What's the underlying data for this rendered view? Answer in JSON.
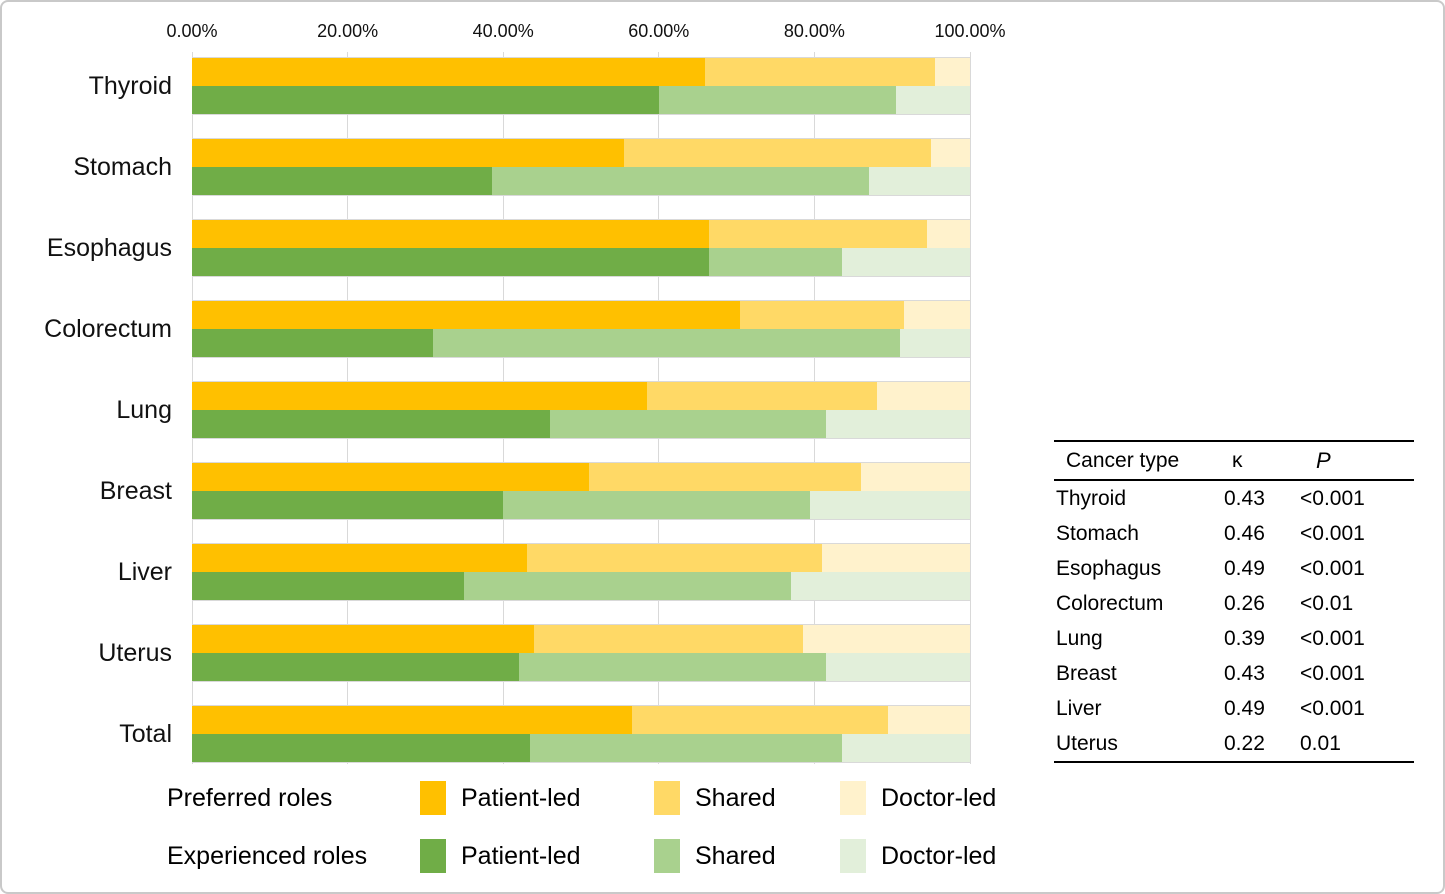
{
  "colors": {
    "preferred_patient_led": "#FFC000",
    "preferred_shared": "#FFD966",
    "preferred_doctor_led": "#FFF2CC",
    "experienced_patient_led": "#70AD47",
    "experienced_shared": "#A9D18E",
    "experienced_doctor_led": "#E2EFDA",
    "gridline": "#d9d9d9"
  },
  "chart_data": {
    "type": "bar",
    "orientation": "horizontal",
    "stacked": true,
    "title": "",
    "xlabel": "",
    "ylabel": "",
    "x_axis": {
      "position": "top",
      "range": [
        0,
        100
      ],
      "tick_values": [
        0,
        20,
        40,
        60,
        80,
        100
      ],
      "tick_labels": [
        "0.00%",
        "20.00%",
        "40.00%",
        "60.00%",
        "80.00%",
        "100.00%"
      ]
    },
    "grid": "vertical",
    "legend_position": "bottom",
    "categories": [
      "Thyroid",
      "Stomach",
      "Esophagus",
      "Colorectum",
      "Lung",
      "Breast",
      "Liver",
      "Uterus",
      "Total"
    ],
    "series": [
      {
        "group": "Preferred roles",
        "name": "Patient-led",
        "color": "#FFC000",
        "values": [
          66.0,
          55.5,
          66.5,
          70.5,
          58.5,
          51.0,
          43.0,
          44.0,
          56.5
        ]
      },
      {
        "group": "Preferred roles",
        "name": "Shared",
        "color": "#FFD966",
        "values": [
          29.5,
          39.5,
          28.0,
          21.0,
          29.5,
          35.0,
          38.0,
          34.5,
          33.0
        ]
      },
      {
        "group": "Preferred roles",
        "name": "Doctor-led",
        "color": "#FFF2CC",
        "values": [
          4.5,
          5.0,
          5.5,
          8.5,
          12.0,
          14.0,
          19.0,
          21.5,
          10.5
        ]
      },
      {
        "group": "Experienced roles",
        "name": "Patient-led",
        "color": "#70AD47",
        "values": [
          60.0,
          38.5,
          66.5,
          31.0,
          46.0,
          40.0,
          35.0,
          42.0,
          43.5
        ]
      },
      {
        "group": "Experienced roles",
        "name": "Shared",
        "color": "#A9D18E",
        "values": [
          30.5,
          48.5,
          17.0,
          60.0,
          35.5,
          39.5,
          42.0,
          39.5,
          40.0
        ]
      },
      {
        "group": "Experienced roles",
        "name": "Doctor-led",
        "color": "#E2EFDA",
        "values": [
          9.5,
          13.0,
          16.5,
          9.0,
          18.5,
          20.5,
          23.0,
          18.5,
          16.5
        ]
      }
    ]
  },
  "legend": {
    "rows": [
      {
        "label": "Preferred roles",
        "items": [
          {
            "label": "Patient-led",
            "color": "#FFC000"
          },
          {
            "label": "Shared",
            "color": "#FFD966"
          },
          {
            "label": "Doctor-led",
            "color": "#FFF2CC"
          }
        ]
      },
      {
        "label": "Experienced roles",
        "items": [
          {
            "label": "Patient-led",
            "color": "#70AD47"
          },
          {
            "label": "Shared",
            "color": "#A9D18E"
          },
          {
            "label": "Doctor-led",
            "color": "#E2EFDA"
          }
        ]
      }
    ]
  },
  "table": {
    "headers": [
      "Cancer type",
      "κ",
      "P"
    ],
    "rows": [
      [
        "Thyroid",
        "0.43",
        "<0.001"
      ],
      [
        "Stomach",
        "0.46",
        "<0.001"
      ],
      [
        "Esophagus",
        "0.49",
        "<0.001"
      ],
      [
        "Colorectum",
        "0.26",
        "<0.01"
      ],
      [
        "Lung",
        "0.39",
        "<0.001"
      ],
      [
        "Breast",
        "0.43",
        "<0.001"
      ],
      [
        "Liver",
        "0.49",
        "<0.001"
      ],
      [
        "Uterus",
        "0.22",
        "0.01"
      ]
    ]
  }
}
